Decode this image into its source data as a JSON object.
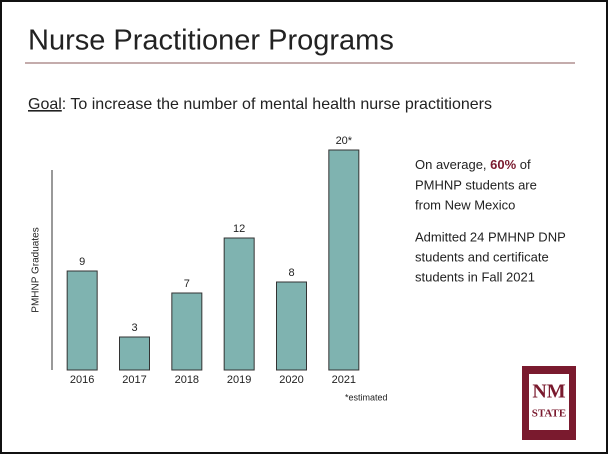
{
  "slide": {
    "title": "Nurse Practitioner Programs",
    "goal_label": "Goal",
    "goal_text": ": To increase the number of mental health nurse practitioners",
    "note1": {
      "before": "On average, ",
      "highlight": "60%",
      "after": " of",
      "line2": "PMHNP students are",
      "line3": "from New Mexico"
    },
    "note2": {
      "line1": "Admitted 24 PMHNP DNP",
      "line2": "students and certificate",
      "line3": "students in Fall 2021"
    },
    "logo": {
      "top": "NM",
      "bottom": "STATE"
    }
  },
  "chart_data": {
    "type": "bar",
    "y_label": "PMHNP Graduates",
    "categories": [
      "2016",
      "2017",
      "2018",
      "2019",
      "2020",
      "2021"
    ],
    "values": [
      9,
      3,
      7,
      12,
      8,
      20
    ],
    "value_labels": [
      "9",
      "3",
      "7",
      "12",
      "8",
      "20*"
    ],
    "footnote": "*estimated",
    "color": "#7fb3b0",
    "ylim": [
      0,
      20
    ]
  }
}
